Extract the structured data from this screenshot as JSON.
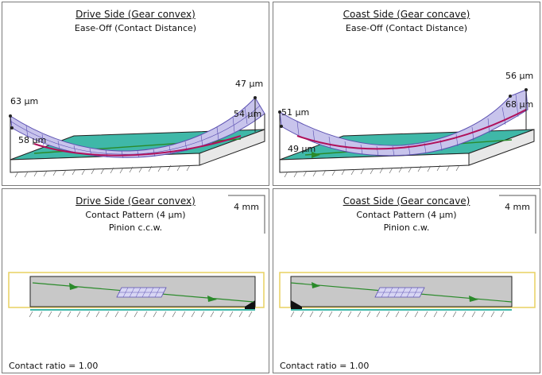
{
  "panels": {
    "drive_ease": {
      "title": "Drive Side  (Gear convex)",
      "subtitle": "Ease-Off (Contact Distance)",
      "labels": {
        "top_left": "63 µm",
        "bottom_left": "58 µm",
        "top_right": "47 µm",
        "bottom_right": "54 µm"
      }
    },
    "coast_ease": {
      "title": "Coast Side  (Gear concave)",
      "subtitle": "Ease-Off (Contact Distance)",
      "labels": {
        "top_left": "51 µm",
        "bottom_left": "49 µm",
        "top_right": "56 µm",
        "bottom_right": "68 µm"
      }
    },
    "drive_contact": {
      "title": "Drive Side  (Gear convex)",
      "subtitle": "Contact Pattern  (4 µm)",
      "subtitle2": "Pinion c.c.w.",
      "scale": "4 mm",
      "ratio": "Contact ratio = 1.00"
    },
    "coast_contact": {
      "title": "Coast Side  (Gear concave)",
      "subtitle": "Contact Pattern  (4 µm)",
      "subtitle2": "Pinion c.w.",
      "scale": "4 mm",
      "ratio": "Contact ratio = 1.00"
    }
  },
  "colors": {
    "mesh": "#5a4fb0",
    "mesh_fill": "#c8c4ec",
    "base": "#3fb8a8",
    "contact_line": "#b0105a",
    "tooth": "#c8c8c8",
    "pattern_box": "#e8d060",
    "path": "#2a8a2a"
  }
}
